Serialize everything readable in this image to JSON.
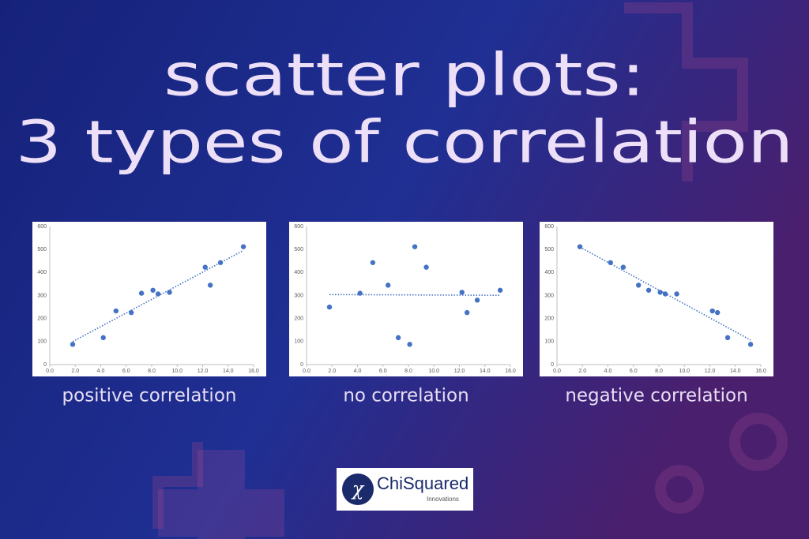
{
  "title": {
    "lines": [
      "scatter plots:",
      "3 types of correlation"
    ]
  },
  "logo": {
    "name": "ChiSquared",
    "subtitle": "Innovations"
  },
  "chart_data": [
    {
      "type": "scatter",
      "caption": "positive correlation",
      "color": "#4472c4",
      "trendline": true,
      "x": [
        1.8,
        4.2,
        5.2,
        6.4,
        7.2,
        8.1,
        8.5,
        9.4,
        12.2,
        12.6,
        13.4,
        15.2
      ],
      "y": [
        88,
        117,
        233,
        226,
        310,
        323,
        307,
        314,
        423,
        345,
        443,
        512
      ],
      "xlim": [
        0,
        16
      ],
      "ylim": [
        0,
        600
      ],
      "xticks": [
        {
          "value": 0,
          "label": "0.0"
        },
        {
          "value": 2,
          "label": "2.0"
        },
        {
          "value": 4,
          "label": "4.0"
        },
        {
          "value": 6,
          "label": "6.0"
        },
        {
          "value": 8,
          "label": "8.0"
        },
        {
          "value": 10,
          "label": "10.0"
        },
        {
          "value": 12,
          "label": "12.0"
        },
        {
          "value": 14,
          "label": "14.0"
        },
        {
          "value": 16,
          "label": "16.0"
        }
      ],
      "yticks": [
        0,
        100,
        200,
        300,
        400,
        500,
        600
      ]
    },
    {
      "type": "scatter",
      "caption": "no correlation",
      "color": "#4472c4",
      "trendline": true,
      "x": [
        1.8,
        4.2,
        5.2,
        6.4,
        7.2,
        8.1,
        8.5,
        9.4,
        12.2,
        12.6,
        13.4,
        15.2
      ],
      "y": [
        250,
        310,
        443,
        345,
        117,
        88,
        512,
        423,
        314,
        226,
        280,
        323
      ],
      "xlim": [
        0,
        16
      ],
      "ylim": [
        0,
        600
      ],
      "xticks": [
        {
          "value": 0,
          "label": "0.0"
        },
        {
          "value": 2,
          "label": "2.0"
        },
        {
          "value": 4,
          "label": "4.0"
        },
        {
          "value": 6,
          "label": "6.0"
        },
        {
          "value": 8,
          "label": "8.0"
        },
        {
          "value": 10,
          "label": "10.0"
        },
        {
          "value": 12,
          "label": "12.0"
        },
        {
          "value": 14,
          "label": "14.0"
        },
        {
          "value": 16,
          "label": "16.0"
        }
      ],
      "yticks": [
        0,
        100,
        200,
        300,
        400,
        500,
        600
      ]
    },
    {
      "type": "scatter",
      "caption": "negative correlation",
      "color": "#4472c4",
      "trendline": true,
      "x": [
        1.8,
        4.2,
        5.2,
        6.4,
        7.2,
        8.1,
        8.5,
        9.4,
        12.2,
        12.6,
        13.4,
        15.2
      ],
      "y": [
        512,
        443,
        423,
        345,
        323,
        314,
        307,
        307,
        233,
        226,
        117,
        88
      ],
      "xlim": [
        0,
        16
      ],
      "ylim": [
        0,
        600
      ],
      "xticks": [
        {
          "value": 0,
          "label": "0.0"
        },
        {
          "value": 2,
          "label": "2.0"
        },
        {
          "value": 4,
          "label": "4.0"
        },
        {
          "value": 6,
          "label": "6.0"
        },
        {
          "value": 8,
          "label": "8.0"
        },
        {
          "value": 10,
          "label": "10.0"
        },
        {
          "value": 12,
          "label": "12.0"
        },
        {
          "value": 14,
          "label": "14.0"
        },
        {
          "value": 16,
          "label": "16.0"
        }
      ],
      "yticks": [
        0,
        100,
        200,
        300,
        400,
        500,
        600
      ]
    }
  ]
}
